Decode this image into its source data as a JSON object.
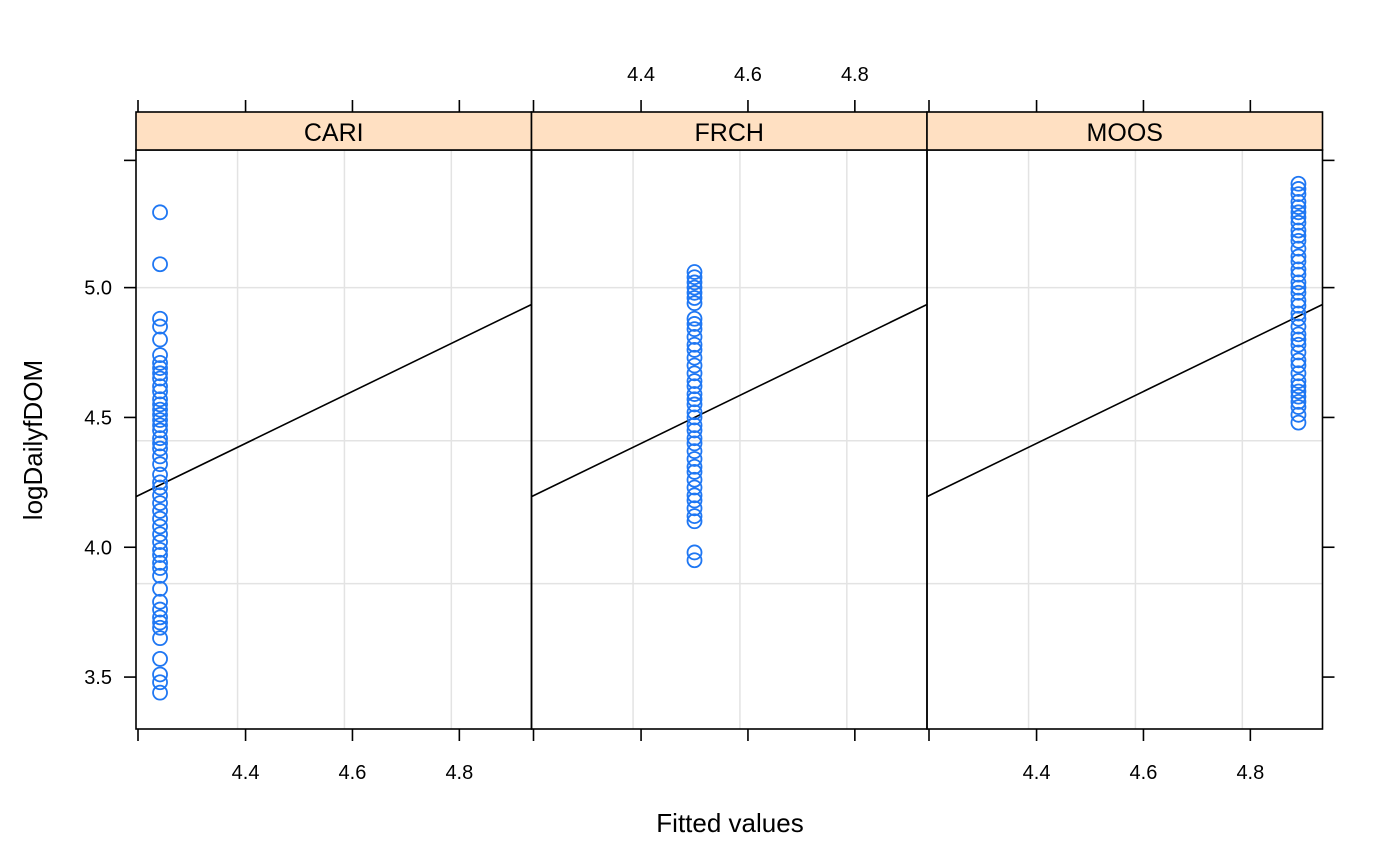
{
  "chart_data": {
    "type": "scatter",
    "layout": "three lattice panels side by side with strips on top",
    "xlabel": "Fitted values",
    "ylabel": "logDailyfDOM",
    "xlim": [
      4.195,
      4.935
    ],
    "ylim": [
      3.3,
      5.53
    ],
    "x_ticks": [
      4.4,
      4.6,
      4.8
    ],
    "x_tick_labels": [
      "4.4",
      "4.6",
      "4.8"
    ],
    "y_ticks": [
      3.5,
      4.0,
      4.5,
      5.0
    ],
    "y_tick_labels": [
      "3.5",
      "4.0",
      "4.5",
      "5.0"
    ],
    "grid": true,
    "colors": {
      "points": "#1f77f3",
      "strip": "#ffe0c2",
      "grid": "#e3e3e3",
      "line": "#000000"
    },
    "reference_line": {
      "slope": 1,
      "intercept": 0
    },
    "panels": [
      {
        "strip": "CARI",
        "x_value": 4.24,
        "y": [
          5.29,
          5.09,
          4.88,
          4.85,
          4.8,
          4.74,
          4.71,
          4.69,
          4.67,
          4.65,
          4.62,
          4.6,
          4.57,
          4.55,
          4.53,
          4.51,
          4.49,
          4.47,
          4.45,
          4.42,
          4.4,
          4.38,
          4.35,
          4.32,
          4.28,
          4.25,
          4.23,
          4.2,
          4.17,
          4.14,
          4.11,
          4.08,
          4.05,
          4.02,
          3.99,
          3.97,
          3.94,
          3.92,
          3.89,
          3.84,
          3.79,
          3.76,
          3.73,
          3.71,
          3.69,
          3.65,
          3.57,
          3.51,
          3.48,
          3.44
        ]
      },
      {
        "strip": "FRCH",
        "x_value": 4.5,
        "y": [
          5.06,
          5.04,
          5.02,
          5.0,
          4.98,
          4.96,
          4.94,
          4.88,
          4.86,
          4.84,
          4.81,
          4.78,
          4.76,
          4.73,
          4.7,
          4.67,
          4.64,
          4.62,
          4.59,
          4.57,
          4.55,
          4.52,
          4.5,
          4.47,
          4.45,
          4.42,
          4.4,
          4.37,
          4.34,
          4.31,
          4.29,
          4.26,
          4.23,
          4.2,
          4.18,
          4.15,
          4.12,
          4.1,
          3.98,
          3.95
        ]
      },
      {
        "strip": "MOOS",
        "x_value": 4.89,
        "y": [
          5.4,
          5.38,
          5.36,
          5.33,
          5.31,
          5.29,
          5.27,
          5.25,
          5.22,
          5.2,
          5.18,
          5.15,
          5.12,
          5.1,
          5.07,
          5.05,
          5.02,
          5.0,
          4.98,
          4.95,
          4.93,
          4.9,
          4.88,
          4.85,
          4.82,
          4.8,
          4.78,
          4.75,
          4.72,
          4.7,
          4.67,
          4.64,
          4.62,
          4.6,
          4.58,
          4.56,
          4.54,
          4.51,
          4.48
        ]
      }
    ]
  }
}
